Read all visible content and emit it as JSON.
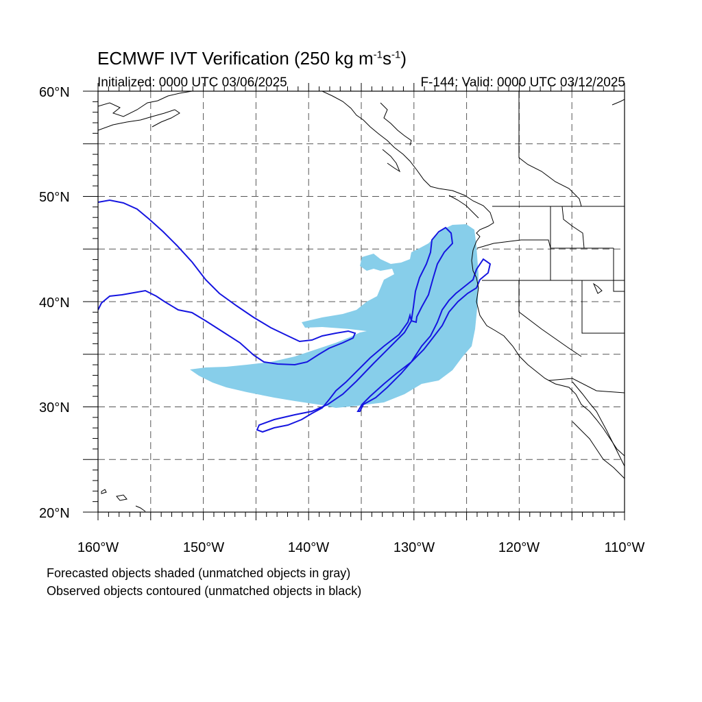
{
  "title": {
    "main": "ECMWF IVT Verification (250 kg m",
    "sup1": "-1",
    "mid": "s",
    "sup2": "-1",
    "end": ")"
  },
  "initialized": "Initialized: 0000 UTC 03/06/2025",
  "valid": "F-144: Valid: 0000 UTC 03/12/2025",
  "map": {
    "lon_range": [
      -160,
      -110
    ],
    "lat_range": [
      20,
      60
    ],
    "lat_labels": [
      "20°N",
      "30°N",
      "40°N",
      "50°N",
      "60°N"
    ],
    "lon_labels": [
      "160°W",
      "150°W",
      "140°W",
      "130°W",
      "120°W",
      "110°W"
    ],
    "grid": "dashed every 5°",
    "forecast_shade_color": "#87ceea",
    "observed_contour_color": "#1515e0",
    "coastline_color": "#000000"
  },
  "notes": {
    "line1": "Forecasted objects shaded (unmatched objects in gray)",
    "line2": "Observed objects contoured (unmatched objects in black)"
  }
}
